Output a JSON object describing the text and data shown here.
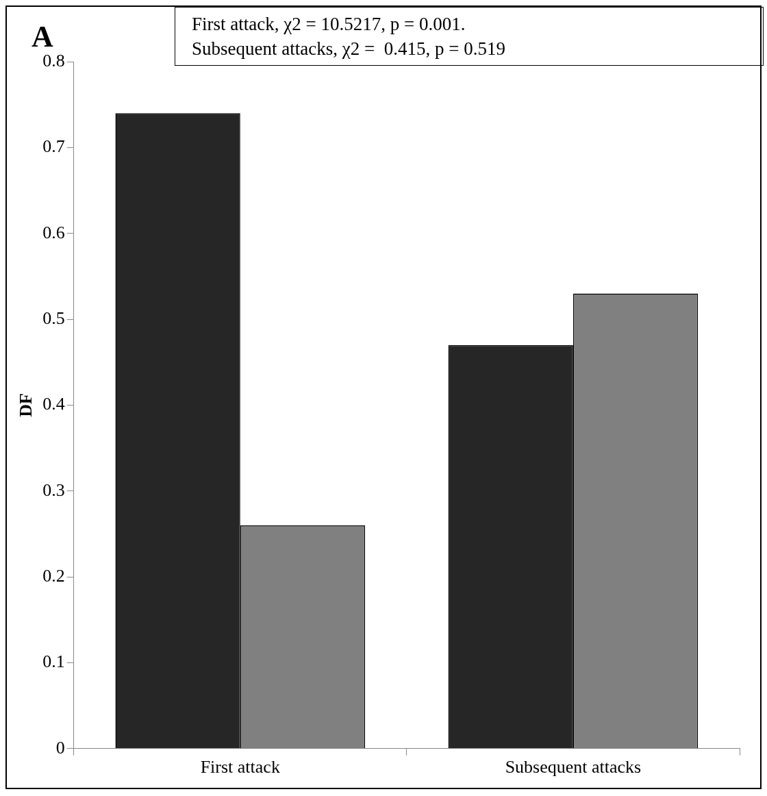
{
  "chart_data": {
    "type": "bar",
    "ylabel": "DF",
    "categories": [
      "First attack",
      "Subsequent attacks"
    ],
    "series": [
      {
        "color": "#262626",
        "values": [
          0.74,
          0.47
        ]
      },
      {
        "color": "#808080",
        "values": [
          0.26,
          0.53
        ]
      }
    ],
    "ylim": [
      0,
      0.8
    ],
    "yticks": [
      0,
      0.1,
      0.2,
      0.3,
      0.4,
      0.5,
      0.6,
      0.7,
      0.8
    ],
    "grid": false,
    "legend": false,
    "annotations": [
      "A",
      "First attack, χ2 = 10.5217, p = 0.001.",
      "Subsequent attacks, χ2 =  0.415, p = 0.519"
    ]
  }
}
